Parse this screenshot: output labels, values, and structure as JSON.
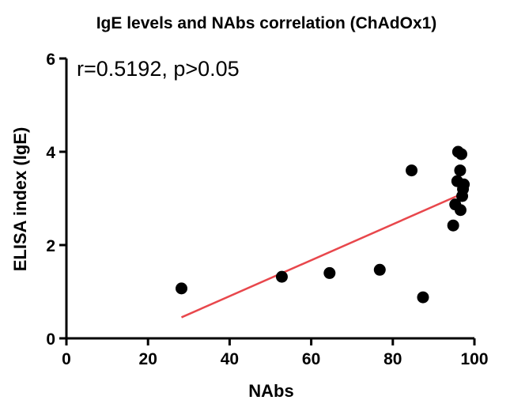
{
  "chart_data": {
    "type": "scatter",
    "title": "IgE levels and NAbs correlation  (ChAdOx1)",
    "annotation": "r=0.5192, p>0.05",
    "xlabel": "NAbs",
    "ylabel": "ELISA index (IgE)",
    "xlim": [
      0,
      100
    ],
    "ylim": [
      0,
      6
    ],
    "x_ticks": [
      0,
      20,
      40,
      60,
      80,
      100
    ],
    "y_ticks": [
      0,
      2,
      4,
      6
    ],
    "grid": false,
    "points": [
      {
        "x": 28.2,
        "y": 1.07
      },
      {
        "x": 52.8,
        "y": 1.32
      },
      {
        "x": 64.5,
        "y": 1.4
      },
      {
        "x": 76.8,
        "y": 1.47
      },
      {
        "x": 84.6,
        "y": 3.6
      },
      {
        "x": 87.4,
        "y": 0.88
      },
      {
        "x": 94.8,
        "y": 2.42
      },
      {
        "x": 95.3,
        "y": 2.87
      },
      {
        "x": 95.8,
        "y": 3.37
      },
      {
        "x": 96.0,
        "y": 4.0
      },
      {
        "x": 96.5,
        "y": 3.6
      },
      {
        "x": 96.6,
        "y": 2.75
      },
      {
        "x": 96.8,
        "y": 3.95
      },
      {
        "x": 97.0,
        "y": 3.05
      },
      {
        "x": 97.2,
        "y": 3.2
      },
      {
        "x": 97.4,
        "y": 3.3
      }
    ],
    "regression_line": {
      "x": [
        28.2,
        97.0
      ],
      "y": [
        0.45,
        3.1
      ],
      "color": "#e8474c"
    },
    "point_color": "#000000"
  }
}
